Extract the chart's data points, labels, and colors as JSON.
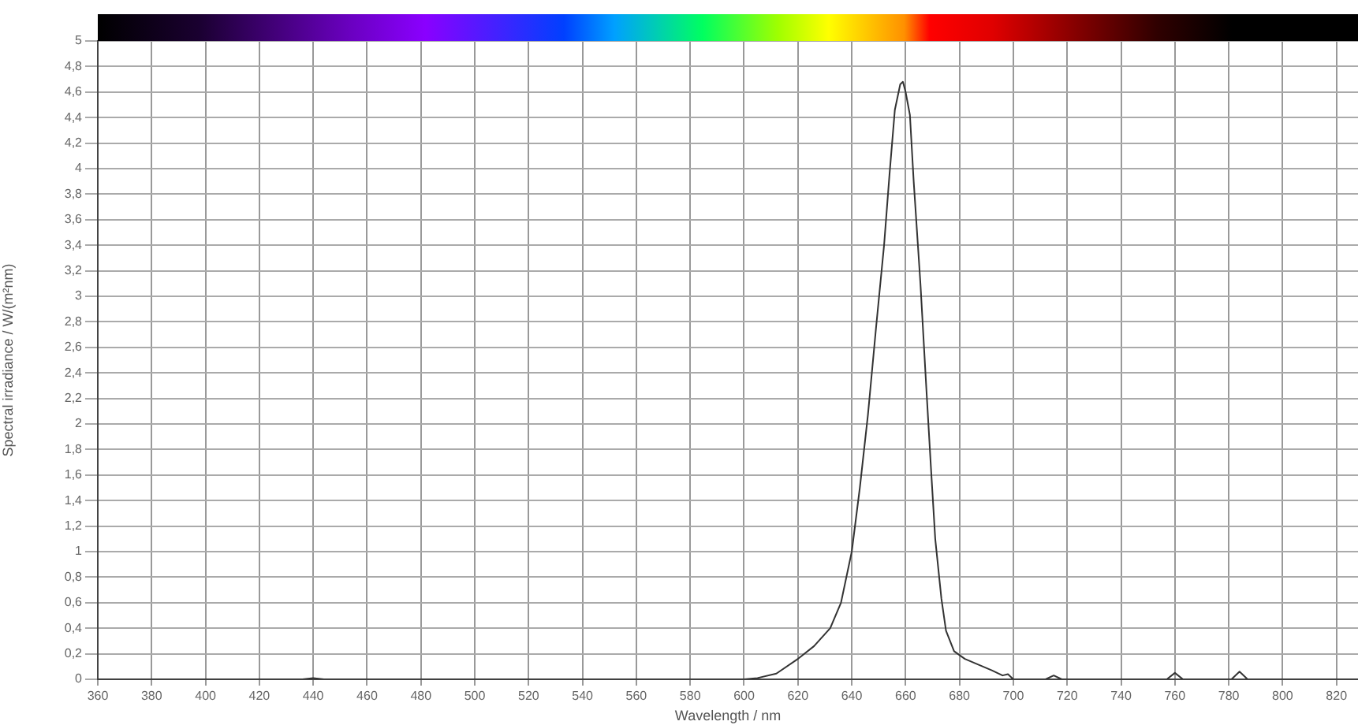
{
  "chart_data": {
    "type": "line",
    "xlabel": "Wavelength / nm",
    "ylabel": "Spectral irradiance / W/(m²nm)",
    "x": [
      360,
      430,
      436,
      440,
      444,
      600,
      605,
      612,
      620,
      626,
      632,
      636,
      640,
      643,
      646,
      649,
      652,
      654,
      656,
      658,
      659,
      660,
      661.6,
      663,
      665.5,
      667.5,
      669.4,
      671,
      673.3,
      675,
      678,
      682,
      687,
      692,
      696,
      698,
      700,
      712,
      715,
      718,
      757,
      760,
      763,
      781,
      784,
      787,
      828
    ],
    "series": [
      {
        "color": "#333333",
        "values": [
          0,
          0,
          0,
          0.01,
          0,
          0,
          0.01,
          0.045,
          0.16,
          0.26,
          0.4,
          0.6,
          1.0,
          1.5,
          2.07,
          2.75,
          3.4,
          3.95,
          4.46,
          4.66,
          4.68,
          4.6,
          4.42,
          3.9,
          3.1,
          2.35,
          1.66,
          1.1,
          0.63,
          0.38,
          0.22,
          0.16,
          0.115,
          0.07,
          0.03,
          0.04,
          0,
          0,
          0.03,
          0,
          0,
          0.05,
          0,
          0,
          0.06,
          0,
          0
        ]
      }
    ],
    "xlim": [
      360,
      828
    ],
    "xticks": [
      360,
      380,
      400,
      420,
      440,
      460,
      480,
      500,
      520,
      540,
      560,
      580,
      600,
      620,
      640,
      660,
      680,
      700,
      720,
      740,
      760,
      780,
      800,
      820
    ],
    "ylim": [
      0,
      5
    ],
    "yticks": [
      0,
      {
        "value": 0.2,
        "label": "0,2"
      },
      {
        "value": 0.4,
        "label": "0,4"
      },
      {
        "value": 0.6,
        "label": "0,6"
      },
      {
        "value": 0.8,
        "label": "0,8"
      },
      1,
      {
        "value": 1.2,
        "label": "1,2"
      },
      {
        "value": 1.4,
        "label": "1,4"
      },
      {
        "value": 1.6,
        "label": "1,6"
      },
      {
        "value": 1.8,
        "label": "1,8"
      },
      2,
      {
        "value": 2.2,
        "label": "2,2"
      },
      {
        "value": 2.4,
        "label": "2,4"
      },
      {
        "value": 2.6,
        "label": "2,6"
      },
      {
        "value": 2.8,
        "label": "2,8"
      },
      3,
      {
        "value": 3.2,
        "label": "3,2"
      },
      {
        "value": 3.4,
        "label": "3,4"
      },
      {
        "value": 3.6,
        "label": "3,6"
      },
      {
        "value": 3.8,
        "label": "3,8"
      },
      4,
      {
        "value": 4.2,
        "label": "4,2"
      },
      {
        "value": 4.4,
        "label": "4,4"
      },
      {
        "value": 4.6,
        "label": "4,6"
      },
      {
        "value": 4.8,
        "label": "4,8"
      },
      5
    ],
    "grid": true,
    "legend": false,
    "marker": "none",
    "line_style": "solid"
  }
}
